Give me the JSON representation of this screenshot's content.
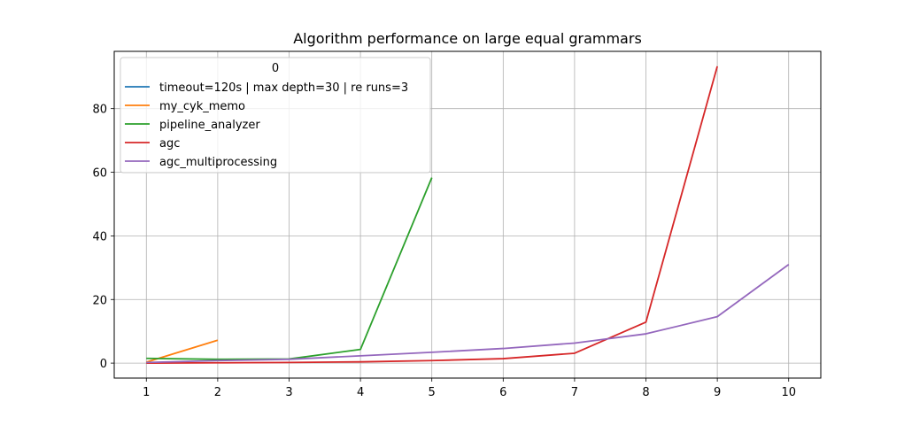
{
  "chart_data": {
    "type": "line",
    "title": "Algorithm performance on large equal grammars",
    "xlabel": "",
    "ylabel": "",
    "xlim": [
      0.55,
      10.45
    ],
    "ylim": [
      -4.7,
      98
    ],
    "xticks": [
      1,
      2,
      3,
      4,
      5,
      6,
      7,
      8,
      9,
      10
    ],
    "yticks": [
      0,
      20,
      40,
      60,
      80
    ],
    "grid": true,
    "legend": {
      "title": "0",
      "placement": "top-left"
    },
    "series": [
      {
        "name": "timeout=120s | max depth=30 | re runs=3",
        "color": "#1f77b4",
        "x": [],
        "y": []
      },
      {
        "name": "my_cyk_memo",
        "color": "#ff7f0e",
        "x": [
          1,
          2
        ],
        "y": [
          0.3,
          7.2
        ]
      },
      {
        "name": "pipeline_analyzer",
        "color": "#2ca02c",
        "x": [
          1,
          2,
          3,
          4,
          5
        ],
        "y": [
          1.5,
          1.2,
          1.3,
          4.3,
          58.3
        ]
      },
      {
        "name": "agc",
        "color": "#d62728",
        "x": [
          1,
          2,
          3,
          4,
          5,
          6,
          7,
          8,
          9
        ],
        "y": [
          0.0,
          0.1,
          0.2,
          0.4,
          0.8,
          1.4,
          3.1,
          12.9,
          93.3
        ]
      },
      {
        "name": "agc_multiprocessing",
        "color": "#9467bd",
        "x": [
          1,
          2,
          3,
          4,
          5,
          6,
          7,
          8,
          9,
          10
        ],
        "y": [
          0.2,
          0.8,
          1.2,
          2.3,
          3.4,
          4.6,
          6.3,
          9.2,
          14.6,
          31.0
        ]
      }
    ]
  }
}
